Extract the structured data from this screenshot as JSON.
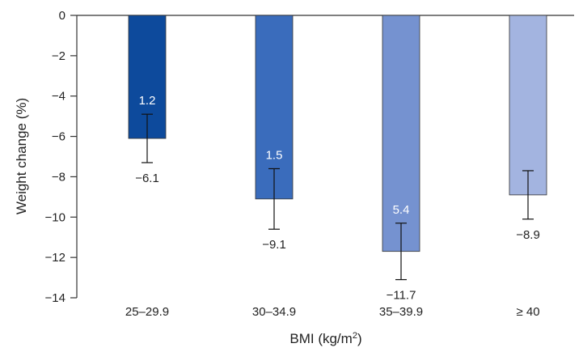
{
  "chart_data": {
    "type": "bar",
    "categories": [
      "25–29.9",
      "30–34.9",
      "35–39.9",
      "≥ 40"
    ],
    "values": [
      -6.1,
      -9.1,
      -11.7,
      -8.9
    ],
    "value_labels": [
      "−6.1",
      "−9.1",
      "−11.7",
      "−8.9"
    ],
    "error": [
      1.2,
      1.5,
      1.4,
      1.2
    ],
    "inner_labels": [
      "1.2",
      "1.5",
      "5.4",
      ""
    ],
    "colors": [
      "#0d4a9c",
      "#3a6cbc",
      "#7592d0",
      "#a3b4e0"
    ],
    "ylabel": "Weight change (%)",
    "xlabel": "BMI (kg/m²)",
    "ylim": [
      -14,
      0
    ],
    "yticks": [
      0,
      -2,
      -4,
      -6,
      -8,
      -10,
      -12,
      -14
    ],
    "ytick_labels": [
      "0",
      "−2",
      "−4",
      "−6",
      "−8",
      "−10",
      "−12",
      "−14"
    ]
  }
}
